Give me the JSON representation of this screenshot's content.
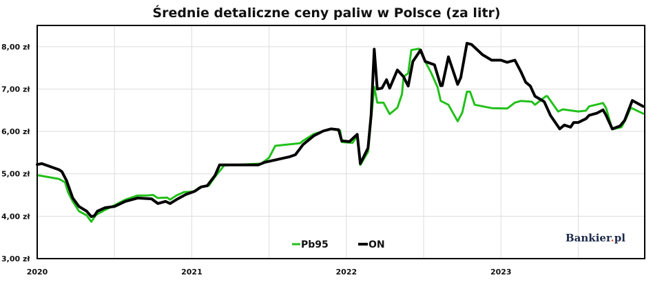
{
  "chart_data": {
    "type": "line",
    "title": "Średnie detaliczne ceny paliw w Polsce (za litr)",
    "xlabel": "",
    "ylabel": "",
    "xlim": [
      2020,
      2023.93
    ],
    "ylim": [
      3,
      8.5
    ],
    "grid": true,
    "legend_position": "bottom-center",
    "x_ticks": [
      {
        "value": 2020,
        "label": "2020"
      },
      {
        "value": 2021,
        "label": "2021"
      },
      {
        "value": 2022,
        "label": "2022"
      },
      {
        "value": 2023,
        "label": "2023"
      }
    ],
    "y_ticks": [
      {
        "value": 3,
        "label": "3,00 zł"
      },
      {
        "value": 4,
        "label": "4,00 zł"
      },
      {
        "value": 5,
        "label": "5,00 zł"
      },
      {
        "value": 6,
        "label": "6,00 zł"
      },
      {
        "value": 7,
        "label": "7,00 zł"
      },
      {
        "value": 8,
        "label": "8,00 zł"
      }
    ],
    "series": [
      {
        "name": "Pb95",
        "color": "#22c01a",
        "x": [
          2020.0,
          2020.14,
          2020.18,
          2020.2,
          2020.23,
          2020.27,
          2020.32,
          2020.35,
          2020.38,
          2020.44,
          2020.5,
          2020.57,
          2020.65,
          2020.71,
          2020.75,
          2020.78,
          2020.84,
          2020.86,
          2020.9,
          2020.95,
          2021.01,
          2021.05,
          2021.11,
          2021.15,
          2021.21,
          2021.45,
          2021.5,
          2021.54,
          2021.7,
          2021.72,
          2021.79,
          2021.9,
          2021.96,
          2021.97,
          2022.04,
          2022.07,
          2022.09,
          2022.14,
          2022.16,
          2022.18,
          2022.2,
          2022.24,
          2022.28,
          2022.33,
          2022.36,
          2022.37,
          2022.4,
          2022.42,
          2022.47,
          2022.51,
          2022.55,
          2022.59,
          2022.61,
          2022.66,
          2022.72,
          2022.75,
          2022.78,
          2022.8,
          2022.83,
          2022.94,
          2023.04,
          2023.09,
          2023.13,
          2023.2,
          2023.22,
          2023.29,
          2023.3,
          2023.37,
          2023.4,
          2023.5,
          2023.55,
          2023.57,
          2023.66,
          2023.68,
          2023.72,
          2023.78,
          2023.81,
          2023.84,
          2023.92
        ],
        "y": [
          4.97,
          4.88,
          4.8,
          4.56,
          4.35,
          4.12,
          4.02,
          3.87,
          4.03,
          4.15,
          4.26,
          4.39,
          4.49,
          4.49,
          4.5,
          4.43,
          4.44,
          4.39,
          4.49,
          4.57,
          4.58,
          4.68,
          4.72,
          4.93,
          5.2,
          5.24,
          5.38,
          5.66,
          5.72,
          5.78,
          5.94,
          6.06,
          6.02,
          5.75,
          5.73,
          5.9,
          5.21,
          5.52,
          6.3,
          7.05,
          6.68,
          6.68,
          6.41,
          6.56,
          6.88,
          7.29,
          7.37,
          7.92,
          7.95,
          7.65,
          7.37,
          7.04,
          6.72,
          6.63,
          6.24,
          6.45,
          6.94,
          6.94,
          6.63,
          6.55,
          6.54,
          6.68,
          6.72,
          6.7,
          6.63,
          6.83,
          6.83,
          6.47,
          6.52,
          6.47,
          6.49,
          6.59,
          6.67,
          6.55,
          6.05,
          6.1,
          6.31,
          6.56,
          6.42
        ]
      },
      {
        "name": "ON",
        "color": "#000000",
        "x": [
          2020.0,
          2020.03,
          2020.14,
          2020.16,
          2020.19,
          2020.23,
          2020.27,
          2020.32,
          2020.35,
          2020.37,
          2020.39,
          2020.44,
          2020.5,
          2020.57,
          2020.65,
          2020.74,
          2020.78,
          2020.83,
          2020.86,
          2020.9,
          2020.96,
          2021.02,
          2021.06,
          2021.1,
          2021.15,
          2021.18,
          2021.43,
          2021.47,
          2021.63,
          2021.67,
          2021.72,
          2021.79,
          2021.85,
          2021.9,
          2021.95,
          2021.97,
          2022.02,
          2022.07,
          2022.09,
          2022.14,
          2022.16,
          2022.18,
          2022.2,
          2022.23,
          2022.26,
          2022.28,
          2022.33,
          2022.37,
          2022.4,
          2022.43,
          2022.48,
          2022.51,
          2022.57,
          2022.61,
          2022.62,
          2022.66,
          2022.72,
          2022.74,
          2022.78,
          2022.81,
          2022.88,
          2022.94,
          2023.0,
          2023.04,
          2023.09,
          2023.13,
          2023.16,
          2023.19,
          2023.22,
          2023.28,
          2023.32,
          2023.38,
          2023.41,
          2023.45,
          2023.47,
          2023.5,
          2023.55,
          2023.57,
          2023.62,
          2023.66,
          2023.68,
          2023.72,
          2023.77,
          2023.8,
          2023.85,
          2023.92
        ],
        "y": [
          5.22,
          5.24,
          5.1,
          5.05,
          4.84,
          4.43,
          4.23,
          4.12,
          3.99,
          4.01,
          4.12,
          4.2,
          4.23,
          4.35,
          4.43,
          4.41,
          4.3,
          4.35,
          4.3,
          4.39,
          4.51,
          4.59,
          4.69,
          4.72,
          4.96,
          5.21,
          5.21,
          5.27,
          5.4,
          5.45,
          5.69,
          5.9,
          6.01,
          6.06,
          6.04,
          5.78,
          5.76,
          5.93,
          5.24,
          5.61,
          6.39,
          7.94,
          7.0,
          7.02,
          7.22,
          7.02,
          7.45,
          7.29,
          7.07,
          7.65,
          7.92,
          7.65,
          7.57,
          7.08,
          7.08,
          7.76,
          7.11,
          7.27,
          8.08,
          8.05,
          7.81,
          7.68,
          7.68,
          7.63,
          7.68,
          7.4,
          7.16,
          7.07,
          6.83,
          6.7,
          6.38,
          6.06,
          6.15,
          6.1,
          6.21,
          6.21,
          6.3,
          6.38,
          6.43,
          6.51,
          6.38,
          6.06,
          6.13,
          6.26,
          6.73,
          6.59
        ]
      }
    ]
  },
  "watermark": {
    "text": "Bankier.pl",
    "main": "Bankier",
    "dot": ".",
    "suffix": "pl",
    "dot_color": "#e8501e"
  }
}
